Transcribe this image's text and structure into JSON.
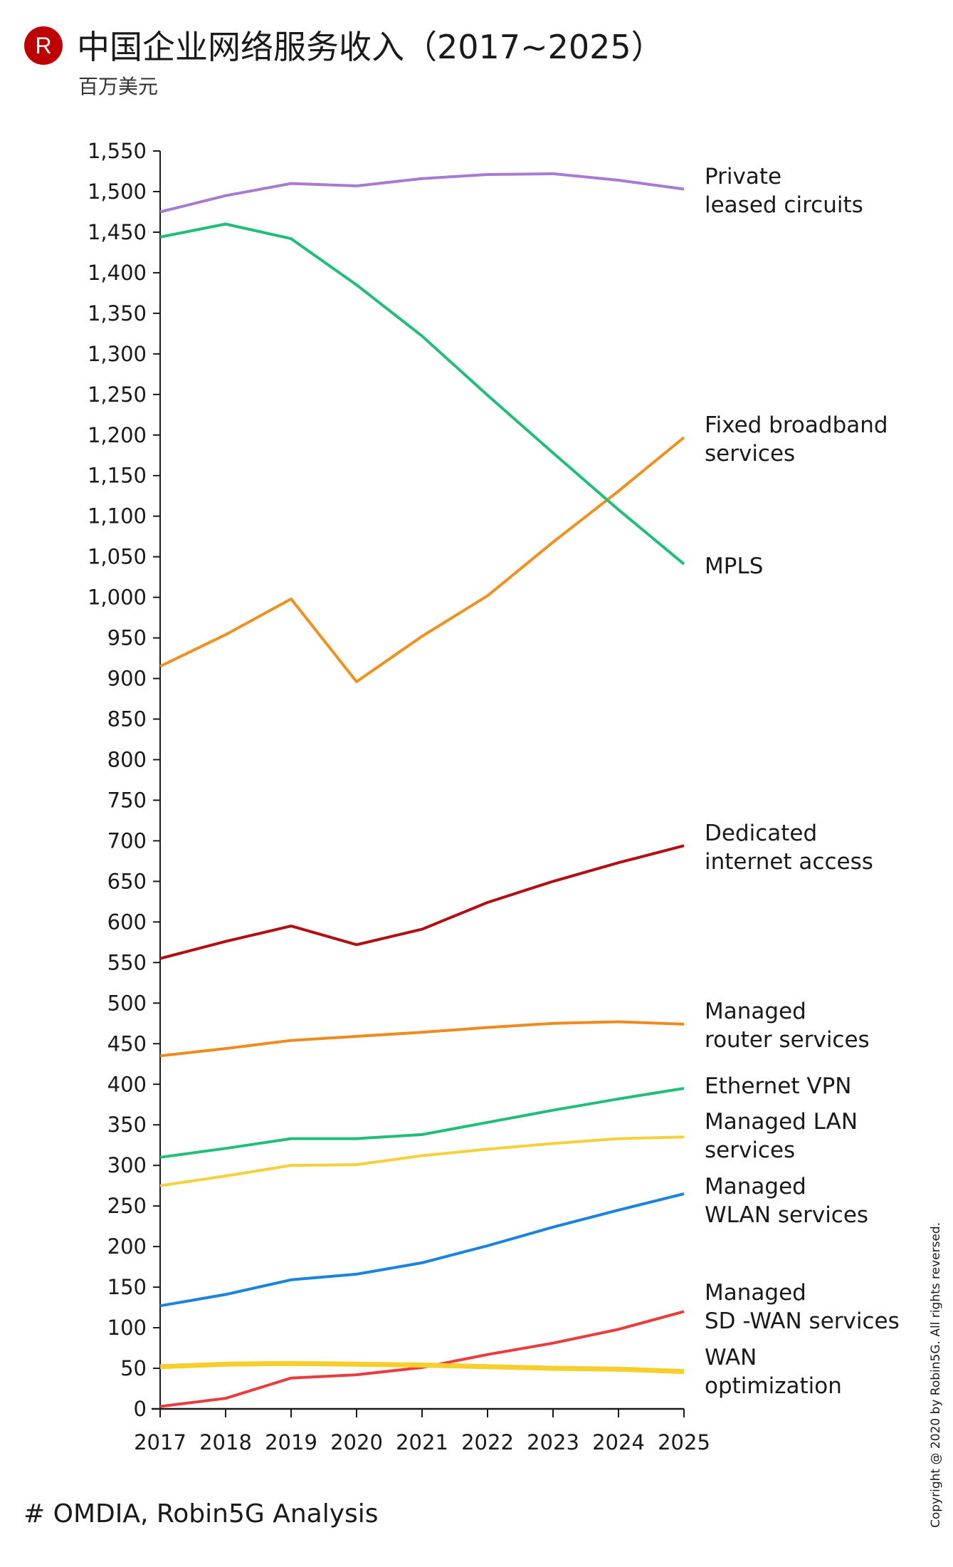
{
  "header": {
    "logo_letter": "R",
    "title": "中国企业网络服务收入（2017~2025）",
    "subtitle": "百万美元"
  },
  "footer": {
    "source": "# OMDIA, Robin5G Analysis",
    "copyright": "Copyright @ 2020 by Robin5G. All rights reversed."
  },
  "chart_data": {
    "type": "line",
    "title": "中国企业网络服务收入（2017~2025）",
    "ylabel": "百万美元",
    "xlabel": "",
    "x": [
      "2017",
      "2018",
      "2019",
      "2020",
      "2021",
      "2022",
      "2023",
      "2024",
      "2025"
    ],
    "ylim": [
      0,
      1550
    ],
    "yticks": [
      0,
      50,
      100,
      150,
      200,
      250,
      300,
      350,
      400,
      450,
      500,
      550,
      600,
      650,
      700,
      750,
      800,
      850,
      900,
      950,
      1000,
      1050,
      1100,
      1150,
      1200,
      1250,
      1300,
      1350,
      1400,
      1450,
      1500,
      1550
    ],
    "ytick_labels": [
      "0",
      "50",
      "100",
      "150",
      "200",
      "250",
      "300",
      "350",
      "400",
      "450",
      "500",
      "550",
      "600",
      "650",
      "700",
      "750",
      "800",
      "850",
      "900",
      "950",
      "1,000",
      "1,050",
      "1,100",
      "1,150",
      "1,200",
      "1,250",
      "1,300",
      "1,350",
      "1,400",
      "1,450",
      "1,500",
      "1,550"
    ],
    "grid": false,
    "legend": "inline-right",
    "series": [
      {
        "name": "Private leased circuits",
        "label_lines": [
          "Private",
          "leased circuits"
        ],
        "color": "#a97ad2",
        "values": [
          1475,
          1495,
          1510,
          1507,
          1516,
          1521,
          1522,
          1514,
          1503
        ]
      },
      {
        "name": "Fixed broadband services",
        "label_lines": [
          "Fixed broadband",
          "services"
        ],
        "color": "#f0901e",
        "values": [
          915,
          954,
          998,
          896,
          952,
          1002,
          1068,
          1131,
          1197
        ]
      },
      {
        "name": "MPLS",
        "label_lines": [
          "MPLS"
        ],
        "color": "#1fbf77",
        "values": [
          1444,
          1460,
          1442,
          1385,
          1322,
          1249,
          1178,
          1108,
          1041
        ]
      },
      {
        "name": "Dedicated internet access",
        "label_lines": [
          "Dedicated",
          "internet access"
        ],
        "color": "#b30f12",
        "values": [
          555,
          576,
          595,
          572,
          591,
          624,
          650,
          673,
          694
        ]
      },
      {
        "name": "Managed router services",
        "label_lines": [
          "Managed",
          "router services"
        ],
        "color": "#f08a1c",
        "values": [
          435,
          444,
          454,
          459,
          464,
          470,
          475,
          477,
          474
        ]
      },
      {
        "name": "Ethernet VPN",
        "label_lines": [
          "Ethernet VPN"
        ],
        "color": "#1fbf77",
        "values": [
          310,
          321,
          333,
          333,
          338,
          353,
          368,
          382,
          395
        ]
      },
      {
        "name": "Managed LAN services",
        "label_lines": [
          "Managed LAN",
          "services"
        ],
        "color": "#f5d038",
        "values": [
          275,
          287,
          300,
          301,
          312,
          320,
          327,
          333,
          335
        ]
      },
      {
        "name": "Managed WLAN services",
        "label_lines": [
          "Managed",
          "WLAN services"
        ],
        "color": "#1a82e0",
        "values": [
          127,
          141,
          159,
          166,
          180,
          201,
          224,
          245,
          265
        ]
      },
      {
        "name": "Managed SD-WAN services",
        "label_lines": [
          "Managed",
          "SD -WAN services"
        ],
        "color": "#ec3b3b",
        "values": [
          3,
          13,
          38,
          42,
          51,
          67,
          81,
          98,
          120
        ]
      },
      {
        "name": "WAN optimization",
        "label_lines": [
          "WAN",
          "optimization"
        ],
        "color": "#f7cf2c",
        "values": [
          52,
          55,
          56,
          55,
          54,
          52,
          50,
          49,
          46
        ]
      }
    ]
  }
}
